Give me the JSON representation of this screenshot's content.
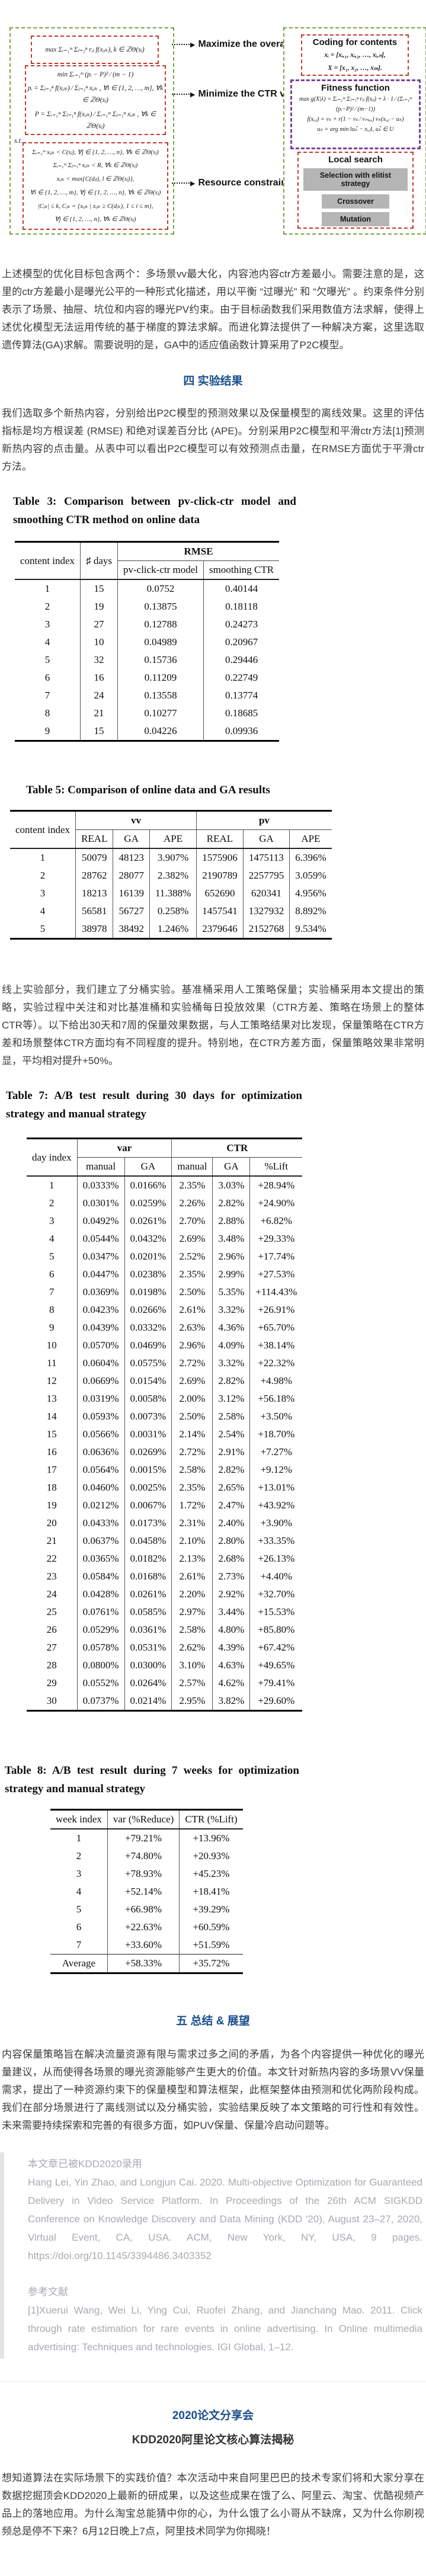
{
  "colors": {
    "heading_blue": "#1b4e8c",
    "quote_gray": "#a7abb1",
    "diagram_green_border": "#76a240",
    "diagram_red_border": "#c0392b",
    "diagram_purple_border": "#7d3c98",
    "diagram_button_gray": "#b5b5b5"
  },
  "diagram": {
    "left": {
      "obj1": "max Σᵢ₌₁ᵐ Σⱼ₌₁ⁿ rᵢⱼ f(xᵢⱼₖ), k ∈ ℤΘ(sⱼ)",
      "obj2_lines": [
        "min  Σᵢ₌₁ᵐ (pᵢ − P)² ⁄ (m − 1)",
        "pᵢ = Σⱼ₌₁ⁿ f(xᵢⱼₖ) ⁄ Σⱼ₌₁ⁿ xᵢⱼₖ , ∀i ∈ {1, 2, …, m}, ∀k ∈ ℤΘ(sⱼ)",
        "P = Σᵢ₌₁ᵐ Σⱼ₌₁ⁿ f(xᵢⱼₖ) ⁄ Σᵢ₌₁ᵐ Σⱼ₌₁ⁿ xᵢⱼₖ , ∀k ∈ ℤΘ(sⱼ)"
      ],
      "st": "s.t.",
      "cons_lines": [
        "Σᵢ₌₁ᵐ xᵢⱼₖ < C(sⱼ), ∀j ∈ {1, 2, …, n}, ∀k ∈ ℤΘ(sⱼ)",
        "Σᵢ₌₁ᵐ Σⱼ₌₁ⁿ xᵢⱼₖ < R, ∀k ∈ ℤΘ(sⱼ)",
        "xᵢⱼₖ < max{C(dⱼₗ), l ∈ ℤΘ(sⱼ)},",
        "∀i ∈ {1, 2, …, m}, ∀j ∈ {1, 2, …, n}, ∀k ∈ ℤΘ(sⱼ)",
        "|Cⱼₖ| ≤ k, Cⱼₖ = {xᵢⱼₖ | xᵢⱼₖ ≥ C(dⱼₖ), 1 ≤ i ≤ m},",
        "∀j ∈ {1, 2, …, n}, ∀k ∈ ℤΘ(sⱼ)"
      ]
    },
    "arrow_labels": [
      "Maximize the overall VVs",
      "Minimize the CTR variance",
      "Resource constraints"
    ],
    "right": {
      "coding_title": "Coding for contents",
      "coding_lines": [
        "xᵢ = [xᵢ,₁, xᵢ,₂, …, xᵢ,ₙ],",
        "X = [x₁, x₂, …, xₘ]."
      ],
      "fitness_title": "Fitness function",
      "fitness_lines": [
        "max g(X|λ) = Σᵢ₌₁ᵐ Σⱼ₌₁ⁿ rᵢⱼ f(xᵢⱼ) + λ · 1 ⁄ (Σᵢ₌₁ᵐ (pᵢ−P)² ⁄ (m−1))",
        "f(xᵢ,ⱼ) = vₖ + r(1 − vₖ ⁄ vₘₐₓ) vₖ(xᵢ,ⱼ − uₖ)",
        "uₖ = arg min ‖uₖ̃ − xᵢ,ⱼ‖, uₖ̃ ∈ U"
      ],
      "local_title": "Local search",
      "local_buttons": [
        "Selection with elitist strategy",
        "Crossover",
        "Mutation"
      ]
    }
  },
  "headings": {
    "sec4": "四 实验结果",
    "sec5": "五 总结 & 展望",
    "event_title": "2020论文分享会",
    "event_subtitle": "KDD2020阿里论文核心算法揭秘"
  },
  "paragraphs": {
    "p1": "上述模型的优化目标包含两个：多场景vv最大化，内容池内容ctr方差最小。需要注意的是，这里的ctr方差最小是曝光公平的一种形式化描述，用以平衡 “过曝光” 和 “欠曝光” 。约束条件分别表示了场景、抽屉、坑位和内容的曝光PV约束。由于目标函数我们采用数值方法求解，使得上述优化模型无法运用传统的基于梯度的算法求解。而进化算法提供了一种解决方案，这里选取遗传算法(GA)求解。需要说明的是，GA中的适应值函数计算采用了P2C模型。",
    "p2": "我们选取多个新热内容，分别给出P2C模型的预测效果以及保量模型的离线效果。这里的评估指标是均方根误差 (RMSE) 和绝对误差百分比 (APE)。分别采用P2C模型和平滑ctr方法[1]预测新热内容的点击量。从表中可以看出P2C模型可以有效预测点击量，在RMSE方面优于平滑ctr方法。",
    "p3": "线上实验部分，我们建立了分桶实验。基准桶采用人工策略保量；实验桶采用本文提出的策略，实验过程中关注和对比基准桶和实验桶每日投放效果（CTR方差、策略在场景上的整体CTR等）。以下给出30天和7周的保量效果数据，与人工策略结果对比发现，保量策略在CTR方差和场景整体CTR方面均有不同程度的提升。特别地，在CTR方差方面，保量策略效果非常明显，平均相对提升+50%。",
    "summary": "内容保量策略旨在解决流量资源有限与需求过多之间的矛盾，为各个内容提供一种优化的曝光量建议，从而使得各场景的曝光资源能够产生更大的价值。本文针对新热内容的多场景VV保量需求，提出了一种资源约束下的保量模型和算法框架，此框架整体由预测和优化两阶段构成。我们在部分场景进行了离线测试以及分桶实验，实验结果反映了本文策略的可行性和有效性。未来需要持续探索和完善的有很多方面，如PUV保量、保量冷启动问题等。",
    "event": "想知道算法在实际场景下的实践价值？本次活动中来自阿里巴巴的技术专家们将和大家分享在数据挖掘顶会KDD2020上最新的研成果，以及这些成果在饿了么、阿里云、淘宝、优酷视频产品上的落地应用。为什么淘宝总能猜中你的心，为什么饿了么小哥从不缺席，又为什么你刷视频总是停不下来？6月12日晚上7点，阿里技术同学为你揭晓！"
  },
  "tables": {
    "t3": {
      "title": "Table 3: Comparison between pv-click-ctr model and smoothing CTR method on online data",
      "col1": "content index",
      "col2": "♯ days",
      "group": "RMSE",
      "sub1": "pv-click-ctr model",
      "sub2": "smoothing CTR",
      "rows": [
        [
          "1",
          "15",
          "0.0752",
          "0.40144"
        ],
        [
          "2",
          "19",
          "0.13875",
          "0.18118"
        ],
        [
          "3",
          "27",
          "0.12788",
          "0.24273"
        ],
        [
          "4",
          "10",
          "0.04989",
          "0.20967"
        ],
        [
          "5",
          "32",
          "0.15736",
          "0.29446"
        ],
        [
          "6",
          "16",
          "0.11209",
          "0.22749"
        ],
        [
          "7",
          "24",
          "0.13558",
          "0.13774"
        ],
        [
          "8",
          "21",
          "0.10277",
          "0.18685"
        ],
        [
          "9",
          "15",
          "0.04226",
          "0.09936"
        ]
      ]
    },
    "t5": {
      "title": "Table 5: Comparison of online data and GA results",
      "col1": "content index",
      "g1": "vv",
      "g2": "pv",
      "subs": [
        "REAL",
        "GA",
        "APE",
        "REAL",
        "GA",
        "APE"
      ],
      "rows": [
        [
          "1",
          "50079",
          "48123",
          "3.907%",
          "1575906",
          "1475113",
          "6.396%"
        ],
        [
          "2",
          "28762",
          "28077",
          "2.382%",
          "2190789",
          "2257795",
          "3.059%"
        ],
        [
          "3",
          "18213",
          "16139",
          "11.388%",
          "652690",
          "620341",
          "4.956%"
        ],
        [
          "4",
          "56581",
          "56727",
          "0.258%",
          "1457541",
          "1327932",
          "8.892%"
        ],
        [
          "5",
          "38978",
          "38492",
          "1.246%",
          "2379646",
          "2152768",
          "9.534%"
        ]
      ]
    },
    "t7": {
      "title": "Table 7: A/B test result during 30 days for optimization strategy and manual strategy",
      "col1": "day index",
      "g1": "var",
      "g2": "CTR",
      "subs": [
        "manual",
        "GA",
        "manual",
        "GA",
        "%Lift"
      ],
      "rows": [
        [
          "1",
          "0.0333%",
          "0.0166%",
          "2.35%",
          "3.03%",
          "+28.94%"
        ],
        [
          "2",
          "0.0301%",
          "0.0259%",
          "2.26%",
          "2.82%",
          "+24.90%"
        ],
        [
          "3",
          "0.0492%",
          "0.0261%",
          "2.70%",
          "2.88%",
          "+6.82%"
        ],
        [
          "4",
          "0.0544%",
          "0.0432%",
          "2.69%",
          "3.48%",
          "+29.33%"
        ],
        [
          "5",
          "0.0347%",
          "0.0201%",
          "2.52%",
          "2.96%",
          "+17.74%"
        ],
        [
          "6",
          "0.0447%",
          "0.0238%",
          "2.35%",
          "2.99%",
          "+27.53%"
        ],
        [
          "7",
          "0.0369%",
          "0.0198%",
          "2.50%",
          "5.35%",
          "+114.43%"
        ],
        [
          "8",
          "0.0423%",
          "0.0266%",
          "2.61%",
          "3.32%",
          "+26.91%"
        ],
        [
          "9",
          "0.0439%",
          "0.0332%",
          "2.63%",
          "4.36%",
          "+65.70%"
        ],
        [
          "10",
          "0.0570%",
          "0.0469%",
          "2.96%",
          "4.09%",
          "+38.14%"
        ],
        [
          "11",
          "0.0604%",
          "0.0575%",
          "2.72%",
          "3.32%",
          "+22.32%"
        ],
        [
          "12",
          "0.0669%",
          "0.0154%",
          "2.69%",
          "2.82%",
          "+4.98%"
        ],
        [
          "13",
          "0.0319%",
          "0.0058%",
          "2.00%",
          "3.12%",
          "+56.18%"
        ],
        [
          "14",
          "0.0593%",
          "0.0073%",
          "2.50%",
          "2.58%",
          "+3.50%"
        ],
        [
          "15",
          "0.0566%",
          "0.0031%",
          "2.14%",
          "2.54%",
          "+18.70%"
        ],
        [
          "16",
          "0.0636%",
          "0.0269%",
          "2.72%",
          "2.91%",
          "+7.27%"
        ],
        [
          "17",
          "0.0564%",
          "0.0015%",
          "2.58%",
          "2.82%",
          "+9.12%"
        ],
        [
          "18",
          "0.0460%",
          "0.0025%",
          "2.35%",
          "2.65%",
          "+13.01%"
        ],
        [
          "19",
          "0.0212%",
          "0.0067%",
          "1.72%",
          "2.47%",
          "+43.92%"
        ],
        [
          "20",
          "0.0433%",
          "0.0173%",
          "2.31%",
          "2.40%",
          "+3.90%"
        ],
        [
          "21",
          "0.0637%",
          "0.0458%",
          "2.10%",
          "2.80%",
          "+33.35%"
        ],
        [
          "22",
          "0.0365%",
          "0.0182%",
          "2.13%",
          "2.68%",
          "+26.13%"
        ],
        [
          "23",
          "0.0584%",
          "0.0168%",
          "2.61%",
          "2.73%",
          "+4.40%"
        ],
        [
          "24",
          "0.0428%",
          "0.0261%",
          "2.20%",
          "2.92%",
          "+32.70%"
        ],
        [
          "25",
          "0.0761%",
          "0.0585%",
          "2.97%",
          "3.44%",
          "+15.53%"
        ],
        [
          "26",
          "0.0529%",
          "0.0361%",
          "2.58%",
          "4.80%",
          "+85.80%"
        ],
        [
          "27",
          "0.0578%",
          "0.0531%",
          "2.62%",
          "4.39%",
          "+67.42%"
        ],
        [
          "28",
          "0.0800%",
          "0.0300%",
          "3.10%",
          "4.63%",
          "+49.65%"
        ],
        [
          "29",
          "0.0552%",
          "0.0264%",
          "2.57%",
          "4.62%",
          "+79.41%"
        ],
        [
          "30",
          "0.0737%",
          "0.0214%",
          "2.95%",
          "3.82%",
          "+29.60%"
        ]
      ]
    },
    "t8": {
      "title": "Table 8: A/B test result during 7 weeks for optimization strategy and manual strategy",
      "headers": [
        "week index",
        "var (%Reduce)",
        "CTR (%Lift)"
      ],
      "rows": [
        [
          "1",
          "+79.21%",
          "+13.96%"
        ],
        [
          "2",
          "+74.80%",
          "+20.93%"
        ],
        [
          "3",
          "+78.93%",
          "+45.23%"
        ],
        [
          "4",
          "+52.14%",
          "+18.41%"
        ],
        [
          "5",
          "+66.98%",
          "+39.29%"
        ],
        [
          "6",
          "+22.63%",
          "+60.59%"
        ],
        [
          "7",
          "+33.60%",
          "+51.59%"
        ]
      ],
      "avg": [
        "Average",
        "+58.33%",
        "+35.72%"
      ]
    }
  },
  "quote": {
    "accepted": "本文章已被KDD2020录用",
    "citation": "Hang Lei, Yin Zhao, and Longjun Cai. 2020. Multi-objective Optimization for Guaranteed Delivery in Video Service Platform. In Proceedings of the 26th ACM SIGKDD Conference on Knowledge Discovery and Data Mining (KDD '20), August 23–27, 2020, Virtual Event, CA, USA. ACM, New York, NY, USA, 9 pages. https://doi.org/10.1145/3394486.3403352",
    "ref_heading": "参考文献",
    "ref1": "[1]Xuerui Wang, Wei Li, Ying Cui, Ruofei Zhang, and Jianchang Mao. 2011. Click through rate estimation for rare events in online advertising. In Online multimedia advertising: Techniques and technologies. IGI Global, 1–12."
  }
}
